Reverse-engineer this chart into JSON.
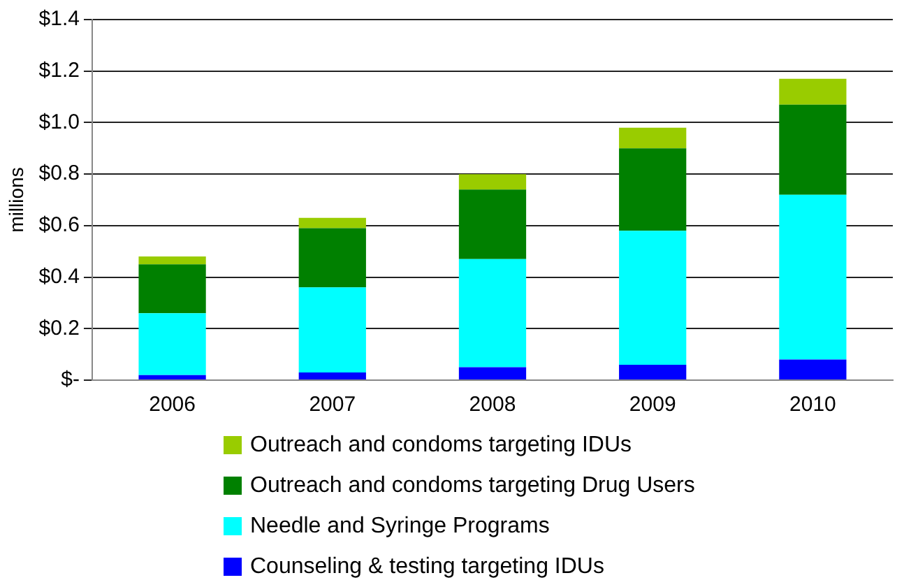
{
  "chart_data": {
    "type": "bar",
    "stacked": true,
    "ylabel": "millions",
    "categories": [
      "2006",
      "2007",
      "2008",
      "2009",
      "2010"
    ],
    "series": [
      {
        "name": "Counseling & testing targeting IDUs",
        "color": "#0000ff",
        "values": [
          0.02,
          0.03,
          0.05,
          0.06,
          0.08
        ]
      },
      {
        "name": "Needle and Syringe Programs",
        "color": "#00ffff",
        "values": [
          0.24,
          0.33,
          0.42,
          0.52,
          0.64
        ]
      },
      {
        "name": "Outreach and condoms targeting Drug Users",
        "color": "#008000",
        "values": [
          0.19,
          0.23,
          0.27,
          0.32,
          0.35
        ]
      },
      {
        "name": "Outreach and condoms targeting IDUs",
        "color": "#99cc00",
        "values": [
          0.03,
          0.04,
          0.06,
          0.08,
          0.1
        ]
      }
    ],
    "ylim": [
      0,
      1.4
    ],
    "yticks": [
      {
        "value": 0,
        "label": "$-"
      },
      {
        "value": 0.2,
        "label": "$0.2"
      },
      {
        "value": 0.4,
        "label": "$0.4"
      },
      {
        "value": 0.6,
        "label": "$0.6"
      },
      {
        "value": 0.8,
        "label": "$0.8"
      },
      {
        "value": 1,
        "label": "$1.0"
      },
      {
        "value": 1.2,
        "label": "$1.2"
      },
      {
        "value": 1.4,
        "label": "$1.4"
      }
    ],
    "grid": "y",
    "legend": "bottom"
  }
}
